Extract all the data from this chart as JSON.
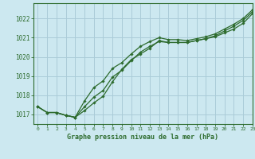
{
  "title": "Graphe pression niveau de la mer (hPa)",
  "bg_color": "#cce8f0",
  "grid_color": "#aaccd8",
  "line_color": "#2d6b2d",
  "marker_color": "#2d6b2d",
  "xlim": [
    -0.5,
    23
  ],
  "ylim": [
    1016.5,
    1022.8
  ],
  "yticks": [
    1017,
    1018,
    1019,
    1020,
    1021,
    1022
  ],
  "xticks": [
    0,
    1,
    2,
    3,
    4,
    5,
    6,
    7,
    8,
    9,
    10,
    11,
    12,
    13,
    14,
    15,
    16,
    17,
    18,
    19,
    20,
    21,
    22,
    23
  ],
  "series": [
    [
      1017.4,
      1017.1,
      1017.1,
      1016.95,
      1016.85,
      1017.2,
      1017.6,
      1017.95,
      1018.7,
      1019.35,
      1019.85,
      1020.15,
      1020.45,
      1020.85,
      1020.75,
      1020.75,
      1020.75,
      1020.85,
      1020.95,
      1021.05,
      1021.25,
      1021.45,
      1021.75,
      1022.25
    ],
    [
      1017.4,
      1017.1,
      1017.1,
      1016.95,
      1016.85,
      1017.4,
      1017.9,
      1018.25,
      1018.95,
      1019.3,
      1019.8,
      1020.25,
      1020.55,
      1020.8,
      1020.75,
      1020.75,
      1020.75,
      1020.85,
      1020.95,
      1021.1,
      1021.35,
      1021.6,
      1021.9,
      1022.35
    ],
    [
      1017.4,
      1017.1,
      1017.1,
      1016.95,
      1016.85,
      1017.7,
      1018.4,
      1018.75,
      1019.4,
      1019.7,
      1020.15,
      1020.55,
      1020.8,
      1021.0,
      1020.9,
      1020.9,
      1020.85,
      1020.95,
      1021.05,
      1021.2,
      1021.45,
      1021.7,
      1022.0,
      1022.45
    ]
  ],
  "figsize": [
    3.2,
    2.0
  ],
  "dpi": 100
}
